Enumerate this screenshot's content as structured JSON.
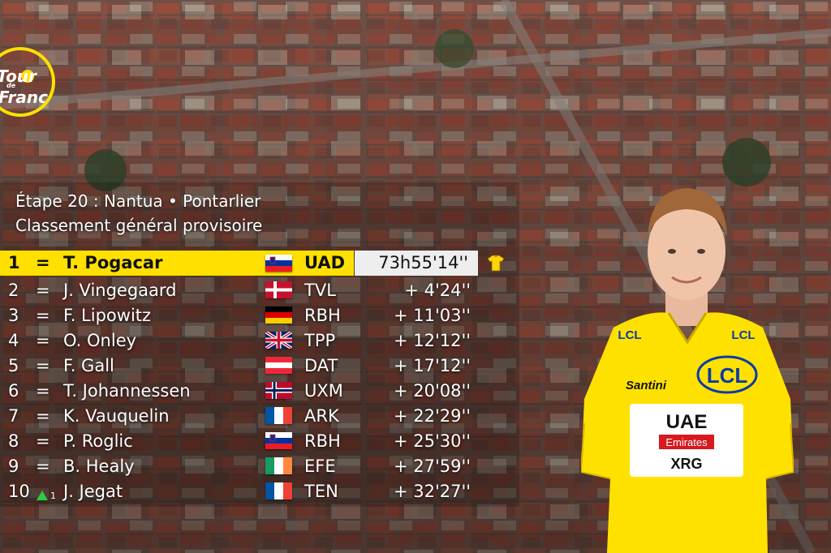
{
  "header": {
    "line1": "Étape 20 : Nantua • Pontarlier",
    "line2": "Classement général provisoire"
  },
  "logo": {
    "text_top": "Tour",
    "text_mid": "de",
    "text_bottom": "France"
  },
  "colors": {
    "yellow": "#ffe000",
    "timebox": "#eeeeee",
    "text": "#ffffff"
  },
  "leader": {
    "rank": "1",
    "eq": "=",
    "name": "T. Pogacar",
    "team": "UAD",
    "time": "73h55'14''",
    "flag": "slovenia-flag",
    "icon": "yellow-jersey-icon"
  },
  "rows": [
    {
      "rank": "2",
      "eq": "=",
      "name": "J. Vingegaard",
      "team": "TVL",
      "time": "+ 4'24''",
      "flag": "denmark-flag"
    },
    {
      "rank": "3",
      "eq": "=",
      "name": "F. Lipowitz",
      "team": "RBH",
      "time": "+ 11'03''",
      "flag": "germany-flag"
    },
    {
      "rank": "4",
      "eq": "=",
      "name": "O. Onley",
      "team": "TPP",
      "time": "+ 12'12''",
      "flag": "uk-flag"
    },
    {
      "rank": "5",
      "eq": "=",
      "name": "F. Gall",
      "team": "DAT",
      "time": "+ 17'12''",
      "flag": "austria-flag"
    },
    {
      "rank": "6",
      "eq": "=",
      "name": "T. Johannessen",
      "team": "UXM",
      "time": "+ 20'08''",
      "flag": "norway-flag"
    },
    {
      "rank": "7",
      "eq": "=",
      "name": "K. Vauquelin",
      "team": "ARK",
      "time": "+ 22'29''",
      "flag": "france-flag"
    },
    {
      "rank": "8",
      "eq": "=",
      "name": "P. Roglic",
      "team": "RBH",
      "time": "+ 25'30''",
      "flag": "slovenia-flag"
    },
    {
      "rank": "9",
      "eq": "=",
      "name": "B. Healy",
      "team": "EFE",
      "time": "+ 27'59''",
      "flag": "ireland-flag"
    },
    {
      "rank": "10",
      "eq": "",
      "move": "1",
      "name": "J. Jegat",
      "team": "TEN",
      "time": "+ 32'27''",
      "flag": "france-flag"
    }
  ],
  "jersey": {
    "sponsor_top": "LCL",
    "sponsor_chest": "LCL",
    "brand": "Santini",
    "team_line1": "UAE",
    "team_line2": "Emirates",
    "team_line3": "XRG",
    "collar": "LCL"
  }
}
